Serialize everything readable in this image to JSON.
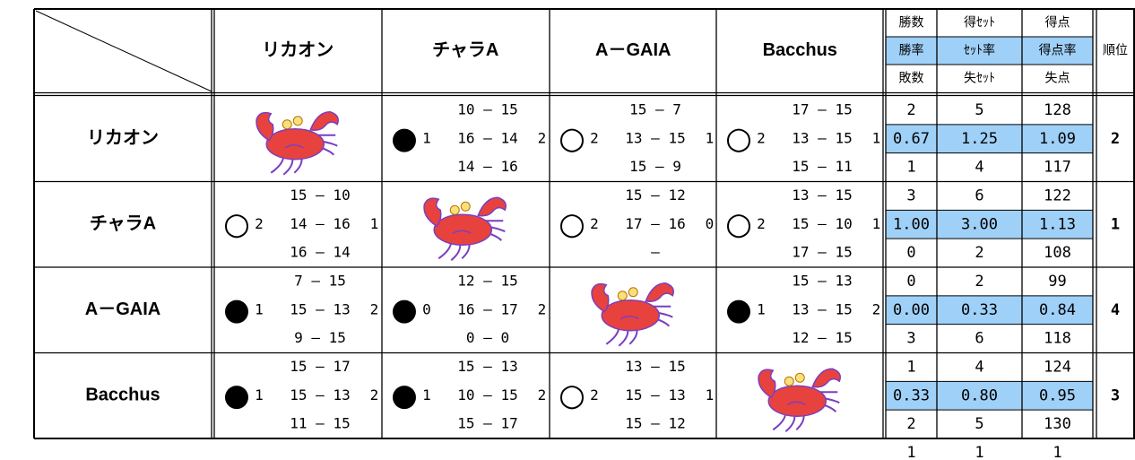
{
  "header": {
    "team_names": [
      "リカオン",
      "チャラA",
      "A－GAIA",
      "Bacchus"
    ],
    "stat_headers": [
      [
        "勝数",
        "得ｾｯﾄ",
        "得点"
      ],
      [
        "勝率",
        "ｾｯﾄ率",
        "得点率"
      ],
      [
        "敗数",
        "失ｾｯﾄ",
        "失点"
      ]
    ],
    "rank_header": "順位"
  },
  "rows": [
    {
      "team": "リカオン",
      "results": [
        null,
        {
          "mark": "●",
          "sets_for": "1",
          "sets_against": "2",
          "games": [
            "10 — 15",
            "16 — 14",
            "14 — 16"
          ]
        },
        {
          "mark": "○",
          "sets_for": "2",
          "sets_against": "1",
          "games": [
            "15 — 7",
            "13 — 15",
            "15 — 9"
          ]
        },
        {
          "mark": "○",
          "sets_for": "2",
          "sets_against": "1",
          "games": [
            "17 — 15",
            "13 — 15",
            "15 — 11"
          ]
        }
      ],
      "stats": [
        [
          "2",
          "5",
          "128"
        ],
        [
          "0.67",
          "1.25",
          "1.09"
        ],
        [
          "1",
          "4",
          "117"
        ]
      ],
      "rank": "2"
    },
    {
      "team": "チャラA",
      "results": [
        {
          "mark": "○",
          "sets_for": "2",
          "sets_against": "1",
          "games": [
            "15 — 10",
            "14 — 16",
            "16 — 14"
          ]
        },
        null,
        {
          "mark": "○",
          "sets_for": "2",
          "sets_against": "0",
          "games": [
            "15 — 12",
            "17 — 16",
            "—"
          ]
        },
        {
          "mark": "○",
          "sets_for": "2",
          "sets_against": "1",
          "games": [
            "13 — 15",
            "15 — 10",
            "17 — 15"
          ]
        }
      ],
      "stats": [
        [
          "3",
          "6",
          "122"
        ],
        [
          "1.00",
          "3.00",
          "1.13"
        ],
        [
          "0",
          "2",
          "108"
        ]
      ],
      "rank": "1"
    },
    {
      "team": "A－GAIA",
      "results": [
        {
          "mark": "●",
          "sets_for": "1",
          "sets_against": "2",
          "games": [
            "7 — 15",
            "15 — 13",
            "9 — 15"
          ]
        },
        {
          "mark": "●",
          "sets_for": "0",
          "sets_against": "2",
          "games": [
            "12 — 15",
            "16 — 17",
            "0 — 0"
          ]
        },
        null,
        {
          "mark": "●",
          "sets_for": "1",
          "sets_against": "2",
          "games": [
            "15 — 13",
            "13 — 15",
            "12 — 15"
          ]
        }
      ],
      "stats": [
        [
          "0",
          "2",
          "99"
        ],
        [
          "0.00",
          "0.33",
          "0.84"
        ],
        [
          "3",
          "6",
          "118"
        ]
      ],
      "rank": "4"
    },
    {
      "team": "Bacchus",
      "results": [
        {
          "mark": "●",
          "sets_for": "1",
          "sets_against": "2",
          "games": [
            "15 — 17",
            "15 — 13",
            "11 — 15"
          ]
        },
        {
          "mark": "●",
          "sets_for": "1",
          "sets_against": "2",
          "games": [
            "15 — 13",
            "10 — 15",
            "15 — 17"
          ]
        },
        {
          "mark": "○",
          "sets_for": "2",
          "sets_against": "1",
          "games": [
            "13 — 15",
            "15 — 13",
            "15 — 12"
          ]
        },
        null
      ],
      "stats": [
        [
          "1",
          "4",
          "124"
        ],
        [
          "0.33",
          "0.80",
          "0.95"
        ],
        [
          "2",
          "5",
          "130"
        ]
      ],
      "rank": "3"
    }
  ],
  "footer": [
    "1",
    "1",
    "1"
  ]
}
